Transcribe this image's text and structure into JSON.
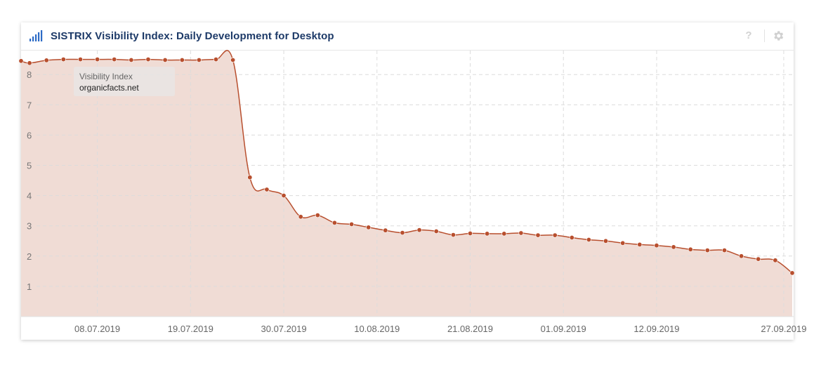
{
  "header": {
    "title": "SISTRIX Visibility Index: Daily Development for Desktop",
    "help_icon": "question-mark-icon",
    "settings_icon": "gear-icon",
    "title_icon": "signal-bars-icon"
  },
  "tooltip": {
    "label": "Visibility Index",
    "value": "organicfacts.net"
  },
  "colors": {
    "line": "#b84f2e",
    "fill": "#f0dcd5",
    "title": "#1d3a68",
    "icon_blue": "#2d6bc6"
  },
  "chart_data": {
    "type": "area",
    "title": "SISTRIX Visibility Index: Daily Development for Desktop",
    "series": [
      {
        "x": [
          "2019-06-29",
          "2019-06-30",
          "2019-07-02",
          "2019-07-04",
          "2019-07-06",
          "2019-07-08",
          "2019-07-10",
          "2019-07-12",
          "2019-07-14",
          "2019-07-16",
          "2019-07-18",
          "2019-07-20",
          "2019-07-22",
          "2019-07-24",
          "2019-07-26",
          "2019-07-28",
          "2019-07-30",
          "2019-08-01",
          "2019-08-03",
          "2019-08-05",
          "2019-08-07",
          "2019-08-09",
          "2019-08-11",
          "2019-08-13",
          "2019-08-15",
          "2019-08-17",
          "2019-08-19",
          "2019-08-21",
          "2019-08-23",
          "2019-08-25",
          "2019-08-27",
          "2019-08-29",
          "2019-08-31",
          "2019-09-02",
          "2019-09-04",
          "2019-09-06",
          "2019-09-08",
          "2019-09-10",
          "2019-09-12",
          "2019-09-14",
          "2019-09-16",
          "2019-09-18",
          "2019-09-20",
          "2019-09-22",
          "2019-09-24",
          "2019-09-26",
          "2019-09-28"
        ],
        "values": [
          8.45,
          8.38,
          8.47,
          8.5,
          8.5,
          8.5,
          8.5,
          8.48,
          8.5,
          8.48,
          8.48,
          8.48,
          8.5,
          8.48,
          4.6,
          4.2,
          4.0,
          3.3,
          3.35,
          3.1,
          3.05,
          2.95,
          2.85,
          2.77,
          2.86,
          2.82,
          2.7,
          2.75,
          2.74,
          2.74,
          2.76,
          2.69,
          2.69,
          2.61,
          2.54,
          2.5,
          2.43,
          2.38,
          2.35,
          2.3,
          2.22,
          2.19,
          2.19,
          2.0,
          1.9,
          1.86,
          1.44
        ]
      }
    ],
    "x_range": [
      "2019-06-29",
      "2019-09-28"
    ],
    "x_ticks": [
      "08.07.2019",
      "19.07.2019",
      "30.07.2019",
      "10.08.2019",
      "21.08.2019",
      "01.09.2019",
      "12.09.2019",
      "27.09.2019"
    ],
    "x_tick_dates": [
      "2019-07-08",
      "2019-07-19",
      "2019-07-30",
      "2019-08-10",
      "2019-08-21",
      "2019-09-01",
      "2019-09-12",
      "2019-09-27"
    ],
    "ylim": [
      0,
      8.7
    ],
    "y_ticks": [
      1,
      2,
      3,
      4,
      5,
      6,
      7,
      8
    ],
    "grid": true,
    "xlabel": "",
    "ylabel": ""
  }
}
